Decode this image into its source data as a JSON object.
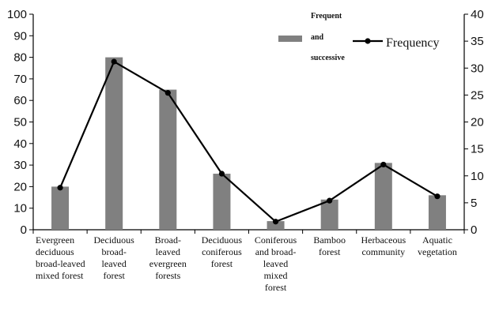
{
  "chart_data": {
    "type": "bar+line",
    "categories": [
      [
        "Evergreen",
        "deciduous",
        "broad-leaved",
        "mixed forest"
      ],
      [
        "Deciduous",
        "broad-",
        "leaved",
        "forest"
      ],
      [
        "Broad-",
        "leaved",
        "evergreen",
        "forests"
      ],
      [
        "Deciduous",
        "coniferous",
        "forest"
      ],
      [
        "Coniferous",
        "and broad-",
        "leaved",
        "mixed",
        "forest"
      ],
      [
        "Bamboo",
        "forest"
      ],
      [
        "Herbaceous",
        "community"
      ],
      [
        "Aquatic",
        "vegetation"
      ]
    ],
    "series": [
      {
        "name": "Frequent and successive",
        "type": "bar",
        "axis": "left",
        "color": "#808080",
        "values": [
          20,
          80,
          65,
          26,
          4,
          14,
          31,
          16
        ]
      },
      {
        "name": "Frequency",
        "type": "line",
        "axis": "right",
        "color": "#000000",
        "values": [
          7.8,
          31.2,
          25.4,
          10.4,
          1.5,
          5.4,
          12.1,
          6.2
        ]
      }
    ],
    "y_left": {
      "min": 0,
      "max": 100,
      "ticks": [
        0,
        10,
        20,
        30,
        40,
        50,
        60,
        70,
        80,
        90,
        100
      ]
    },
    "y_right": {
      "min": 0,
      "max": 40,
      "ticks": [
        0,
        5,
        10,
        15,
        20,
        25,
        30,
        35,
        40
      ]
    },
    "legend": {
      "bar_label_lines": [
        "Frequent",
        "and",
        "successive"
      ],
      "line_label": "Frequency",
      "placement": "top-right"
    },
    "grid": false
  }
}
